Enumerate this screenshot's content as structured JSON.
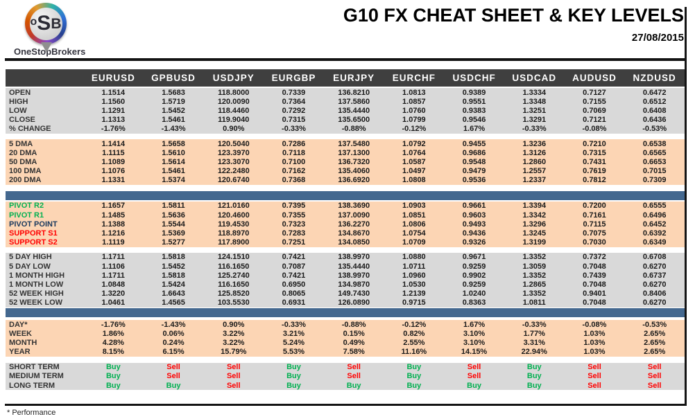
{
  "header": {
    "brand": "OneStopBrokers",
    "logo_o": "o",
    "logo_s": "S",
    "logo_b": "B",
    "title": "G10 FX CHEAT SHEET & KEY LEVELS",
    "date": "27/08/2015"
  },
  "colors": {
    "header_row_bg": "#3F3F3F",
    "gray_section_bg": "#D9D9D9",
    "peach_section_bg": "#FCD5B4",
    "divider_bar_blue": "#44688F",
    "buy_green": "#00B050",
    "sell_red": "#FF0000",
    "pivot_point_navy": "#17375D",
    "rule_black": "#141414"
  },
  "table": {
    "columns": [
      "EURUSD",
      "GPBUSD",
      "USDJPY",
      "EURGBP",
      "EURJPY",
      "EURCHF",
      "USDCHF",
      "USDCAD",
      "AUDUSD",
      "NZDUSD"
    ],
    "sections": [
      {
        "id": "ohlc",
        "style": "gray",
        "rows": [
          {
            "label": "OPEN",
            "values": [
              "1.1514",
              "1.5683",
              "118.8000",
              "0.7339",
              "136.8210",
              "1.0813",
              "0.9389",
              "1.3334",
              "0.7127",
              "0.6472"
            ]
          },
          {
            "label": "HIGH",
            "values": [
              "1.1560",
              "1.5719",
              "120.0090",
              "0.7364",
              "137.5860",
              "1.0857",
              "0.9551",
              "1.3348",
              "0.7155",
              "0.6512"
            ]
          },
          {
            "label": "LOW",
            "values": [
              "1.1291",
              "1.5452",
              "118.4460",
              "0.7292",
              "135.4440",
              "1.0760",
              "0.9383",
              "1.3251",
              "0.7069",
              "0.6408"
            ]
          },
          {
            "label": "CLOSE",
            "values": [
              "1.1313",
              "1.5461",
              "119.9040",
              "0.7315",
              "135.6500",
              "1.0799",
              "0.9546",
              "1.3291",
              "0.7121",
              "0.6436"
            ]
          },
          {
            "label": "% CHANGE",
            "values": [
              "-1.76%",
              "-1.43%",
              "0.90%",
              "-0.33%",
              "-0.88%",
              "-0.12%",
              "1.67%",
              "-0.33%",
              "-0.08%",
              "-0.53%"
            ]
          }
        ]
      },
      {
        "id": "moving-averages",
        "style": "peach",
        "divider_before": {
          "type": "gap",
          "h": 8
        },
        "rows": [
          {
            "label": "5 DMA",
            "values": [
              "1.1414",
              "1.5658",
              "120.5040",
              "0.7286",
              "137.5480",
              "1.0792",
              "0.9455",
              "1.3236",
              "0.7210",
              "0.6538"
            ]
          },
          {
            "label": "20 DMA",
            "values": [
              "1.1115",
              "1.5610",
              "123.3970",
              "0.7118",
              "137.1300",
              "1.0764",
              "0.9686",
              "1.3126",
              "0.7315",
              "0.6565"
            ]
          },
          {
            "label": "50 DMA",
            "values": [
              "1.1089",
              "1.5614",
              "123.3070",
              "0.7100",
              "136.7320",
              "1.0587",
              "0.9548",
              "1.2860",
              "0.7431",
              "0.6653"
            ]
          },
          {
            "label": "100 DMA",
            "values": [
              "1.1076",
              "1.5461",
              "122.2480",
              "0.7162",
              "135.4060",
              "1.0497",
              "0.9479",
              "1.2557",
              "0.7619",
              "0.7015"
            ]
          },
          {
            "label": "200 DMA",
            "values": [
              "1.1331",
              "1.5374",
              "120.6740",
              "0.7368",
              "136.6920",
              "1.0808",
              "0.9536",
              "1.2337",
              "0.7812",
              "0.7309"
            ]
          }
        ]
      },
      {
        "id": "pivots",
        "style": "peach",
        "divider_before": {
          "type": "bar",
          "pre": 9,
          "post": 2
        },
        "rows": [
          {
            "label": "PIVOT R2",
            "label_class": "green",
            "values": [
              "1.1657",
              "1.5811",
              "121.0160",
              "0.7395",
              "138.3690",
              "1.0903",
              "0.9661",
              "1.3394",
              "0.7200",
              "0.6555"
            ]
          },
          {
            "label": "PIVOT R1",
            "label_class": "green",
            "values": [
              "1.1485",
              "1.5636",
              "120.4600",
              "0.7355",
              "137.0090",
              "1.0851",
              "0.9603",
              "1.3342",
              "0.7161",
              "0.6496"
            ]
          },
          {
            "label": "PIVOT POINT",
            "label_class": "navy",
            "values": [
              "1.1388",
              "1.5544",
              "119.4530",
              "0.7323",
              "136.2270",
              "1.0806",
              "0.9493",
              "1.3296",
              "0.7115",
              "0.6452"
            ]
          },
          {
            "label": "SUPPORT S1",
            "label_class": "red",
            "values": [
              "1.1216",
              "1.5369",
              "118.8970",
              "0.7283",
              "134.8670",
              "1.0754",
              "0.9436",
              "1.3245",
              "0.7075",
              "0.6392"
            ]
          },
          {
            "label": "SUPPORT S2",
            "label_class": "red",
            "values": [
              "1.1119",
              "1.5277",
              "117.8900",
              "0.7251",
              "134.0850",
              "1.0709",
              "0.9326",
              "1.3199",
              "0.7030",
              "0.6349"
            ]
          }
        ]
      },
      {
        "id": "ranges",
        "style": "gray",
        "divider_before": {
          "type": "gap",
          "h": 8
        },
        "rows": [
          {
            "label": "5 DAY HIGH",
            "values": [
              "1.1711",
              "1.5818",
              "124.1510",
              "0.7421",
              "138.9970",
              "1.0880",
              "0.9671",
              "1.3352",
              "0.7372",
              "0.6708"
            ]
          },
          {
            "label": "5 DAY LOW",
            "values": [
              "1.1106",
              "1.5452",
              "116.1650",
              "0.7087",
              "135.4440",
              "1.0711",
              "0.9259",
              "1.3059",
              "0.7048",
              "0.6270"
            ]
          },
          {
            "label": "1 MONTH HIGH",
            "values": [
              "1.1711",
              "1.5818",
              "125.2740",
              "0.7421",
              "138.9970",
              "1.0960",
              "0.9902",
              "1.3352",
              "0.7439",
              "0.6737"
            ]
          },
          {
            "label": "1 MONTH LOW",
            "values": [
              "1.0848",
              "1.5424",
              "116.1650",
              "0.6950",
              "134.9870",
              "1.0530",
              "0.9259",
              "1.2865",
              "0.7048",
              "0.6270"
            ]
          },
          {
            "label": "52 WEEK HIGH",
            "values": [
              "1.3220",
              "1.6643",
              "125.8520",
              "0.8065",
              "149.7430",
              "1.2139",
              "1.0240",
              "1.3352",
              "0.9401",
              "0.8406"
            ]
          },
          {
            "label": "52 WEEK LOW",
            "values": [
              "1.0461",
              "1.4565",
              "103.5530",
              "0.6931",
              "126.0890",
              "0.9715",
              "0.8363",
              "1.0811",
              "0.7048",
              "0.6270"
            ]
          }
        ]
      },
      {
        "id": "performance",
        "style": "peach",
        "divider_before": {
          "type": "bar",
          "pre": 1,
          "post": 4
        },
        "rows": [
          {
            "label": "DAY*",
            "values": [
              "-1.76%",
              "-1.43%",
              "0.90%",
              "-0.33%",
              "-0.88%",
              "-0.12%",
              "1.67%",
              "-0.33%",
              "-0.08%",
              "-0.53%"
            ]
          },
          {
            "label": "WEEK",
            "values": [
              "1.86%",
              "0.06%",
              "3.22%",
              "3.21%",
              "0.15%",
              "0.82%",
              "3.10%",
              "1.77%",
              "1.03%",
              "2.65%"
            ]
          },
          {
            "label": "MONTH",
            "values": [
              "4.28%",
              "0.24%",
              "3.22%",
              "5.24%",
              "0.49%",
              "2.55%",
              "3.10%",
              "3.31%",
              "1.03%",
              "2.65%"
            ]
          },
          {
            "label": "YEAR",
            "values": [
              "8.15%",
              "6.15%",
              "15.79%",
              "5.53%",
              "7.58%",
              "11.16%",
              "14.15%",
              "22.94%",
              "1.03%",
              "2.65%"
            ]
          }
        ]
      },
      {
        "id": "signals",
        "style": "gray",
        "colorize": true,
        "divider_before": {
          "type": "gap",
          "h": 9
        },
        "rows": [
          {
            "label": "SHORT TERM",
            "values": [
              "Buy",
              "Sell",
              "Sell",
              "Buy",
              "Sell",
              "Buy",
              "Sell",
              "Buy",
              "Sell",
              "Sell"
            ]
          },
          {
            "label": "MEDIUM TERM",
            "values": [
              "Buy",
              "Sell",
              "Sell",
              "Buy",
              "Sell",
              "Buy",
              "Sell",
              "Buy",
              "Sell",
              "Sell"
            ]
          },
          {
            "label": "LONG TERM",
            "values": [
              "Buy",
              "Buy",
              "Sell",
              "Buy",
              "Buy",
              "Buy",
              "Buy",
              "Buy",
              "Sell",
              "Sell"
            ]
          }
        ]
      }
    ]
  },
  "footer": {
    "note": "* Performance"
  }
}
